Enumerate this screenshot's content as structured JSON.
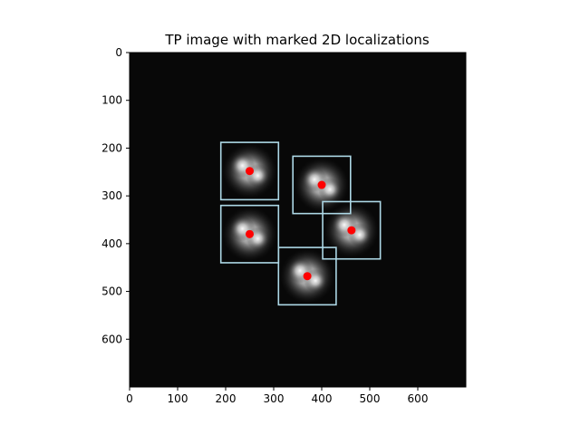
{
  "chart_data": {
    "type": "scatter",
    "title": "TP image with marked 2D localizations",
    "xlabel": "",
    "ylabel": "",
    "xlim": [
      0,
      700
    ],
    "ylim": [
      700,
      0
    ],
    "x_ticks": [
      "0",
      "100",
      "200",
      "300",
      "400",
      "500",
      "600"
    ],
    "y_ticks": [
      "0",
      "100",
      "200",
      "300",
      "400",
      "500",
      "600"
    ],
    "grid": false,
    "background": "image",
    "colors": {
      "marker": "#ff0000",
      "box": "#add8e6",
      "image_bg": "#080808"
    },
    "localizations": [
      {
        "x": 250,
        "y": 248
      },
      {
        "x": 400,
        "y": 277
      },
      {
        "x": 250,
        "y": 380
      },
      {
        "x": 462,
        "y": 372
      },
      {
        "x": 370,
        "y": 468
      }
    ],
    "boxes": [
      {
        "x0": 190,
        "y0": 188,
        "x1": 310,
        "y1": 308
      },
      {
        "x0": 340,
        "y0": 217,
        "x1": 460,
        "y1": 337
      },
      {
        "x0": 190,
        "y0": 320,
        "x1": 310,
        "y1": 440
      },
      {
        "x0": 402,
        "y0": 312,
        "x1": 522,
        "y1": 432
      },
      {
        "x0": 310,
        "y0": 408,
        "x1": 430,
        "y1": 528
      }
    ]
  }
}
